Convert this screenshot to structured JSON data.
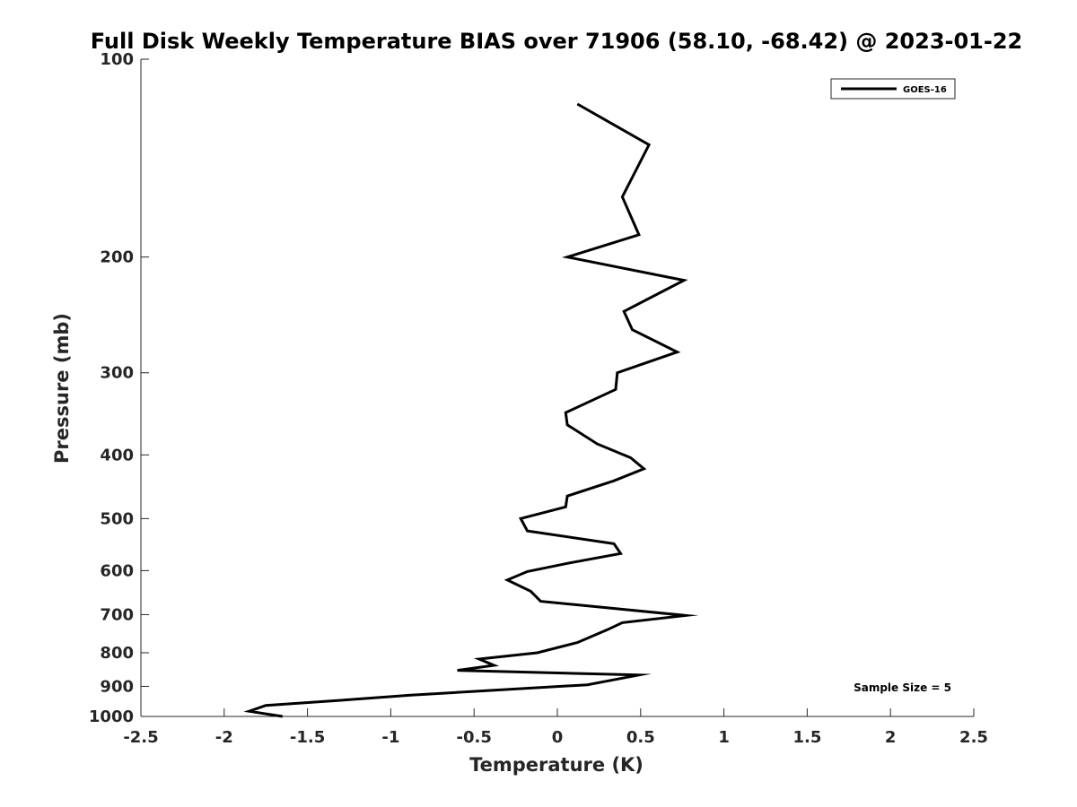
{
  "chart_data": {
    "type": "line",
    "title": "Full Disk Weekly Temperature BIAS over 71906 (58.10, -68.42) @ 2023-01-22",
    "xlabel": "Temperature (K)",
    "ylabel": "Pressure (mb)",
    "xlim": [
      -2.5,
      2.5
    ],
    "ylim": [
      1000,
      100
    ],
    "y_scale": "log",
    "y_reversed": true,
    "x_ticks": [
      "-2.5",
      "-2",
      "-1.5",
      "-1",
      "-0.5",
      "0",
      "0.5",
      "1",
      "1.5",
      "2",
      "2.5"
    ],
    "y_ticks": [
      "100",
      "200",
      "300",
      "400",
      "500",
      "600",
      "700",
      "800",
      "900",
      "1000"
    ],
    "grid": false,
    "legend_position": "top-right",
    "annotation": "Sample Size = 5",
    "series": [
      {
        "name": "GOES-16",
        "color": "#000000",
        "points": [
          {
            "x": 0.12,
            "y": 117
          },
          {
            "x": 0.55,
            "y": 135
          },
          {
            "x": 0.39,
            "y": 162
          },
          {
            "x": 0.49,
            "y": 185
          },
          {
            "x": 0.06,
            "y": 200
          },
          {
            "x": 0.76,
            "y": 217
          },
          {
            "x": 0.4,
            "y": 242
          },
          {
            "x": 0.45,
            "y": 258
          },
          {
            "x": 0.72,
            "y": 279
          },
          {
            "x": 0.36,
            "y": 300
          },
          {
            "x": 0.35,
            "y": 318
          },
          {
            "x": 0.05,
            "y": 345
          },
          {
            "x": 0.06,
            "y": 360
          },
          {
            "x": 0.24,
            "y": 385
          },
          {
            "x": 0.44,
            "y": 404
          },
          {
            "x": 0.52,
            "y": 420
          },
          {
            "x": 0.34,
            "y": 438
          },
          {
            "x": 0.06,
            "y": 462
          },
          {
            "x": 0.05,
            "y": 480
          },
          {
            "x": -0.22,
            "y": 500
          },
          {
            "x": -0.18,
            "y": 522
          },
          {
            "x": 0.34,
            "y": 546
          },
          {
            "x": 0.38,
            "y": 565
          },
          {
            "x": 0.06,
            "y": 585
          },
          {
            "x": -0.18,
            "y": 602
          },
          {
            "x": -0.3,
            "y": 620
          },
          {
            "x": -0.16,
            "y": 645
          },
          {
            "x": -0.1,
            "y": 668
          },
          {
            "x": 0.77,
            "y": 702
          },
          {
            "x": 0.39,
            "y": 720
          },
          {
            "x": 0.3,
            "y": 738
          },
          {
            "x": 0.12,
            "y": 772
          },
          {
            "x": -0.12,
            "y": 800
          },
          {
            "x": -0.47,
            "y": 818
          },
          {
            "x": -0.38,
            "y": 836
          },
          {
            "x": -0.6,
            "y": 851
          },
          {
            "x": 0.49,
            "y": 865
          },
          {
            "x": 0.18,
            "y": 895
          },
          {
            "x": -0.88,
            "y": 928
          },
          {
            "x": -1.3,
            "y": 945
          },
          {
            "x": -1.75,
            "y": 962
          },
          {
            "x": -1.85,
            "y": 982
          },
          {
            "x": -1.65,
            "y": 1000
          }
        ]
      }
    ]
  }
}
